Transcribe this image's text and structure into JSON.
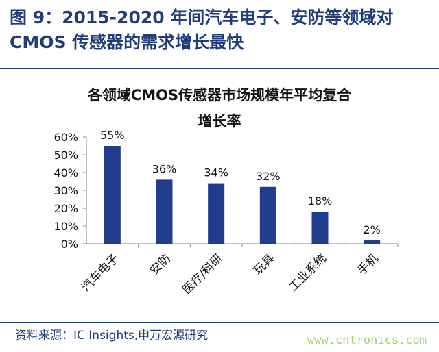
{
  "figure": {
    "title_line1": "图 9：2015-2020 年间汽车电子、安防等领域对",
    "title_line2": "CMOS 传感器的需求增长最快",
    "source": "资料来源：IC Insights,申万宏源研究",
    "watermark": "www.cntronics.com"
  },
  "chart_data": {
    "type": "bar",
    "title_line1": "各领域CMOS传感器市场规模年平均复合",
    "title_line2": "增长率",
    "categories": [
      "汽车电子",
      "安防",
      "医疗/科研",
      "玩具",
      "工业系统",
      "手机"
    ],
    "values": [
      55,
      36,
      34,
      32,
      18,
      2
    ],
    "data_labels": [
      "55%",
      "36%",
      "34%",
      "32%",
      "18%",
      "2%"
    ],
    "yticks": [
      "0%",
      "10%",
      "20%",
      "30%",
      "40%",
      "50%",
      "60%"
    ],
    "ylim": [
      0,
      60
    ],
    "xlabel": "",
    "ylabel": "",
    "grid": false,
    "bar_color": "#1F3D8C"
  }
}
